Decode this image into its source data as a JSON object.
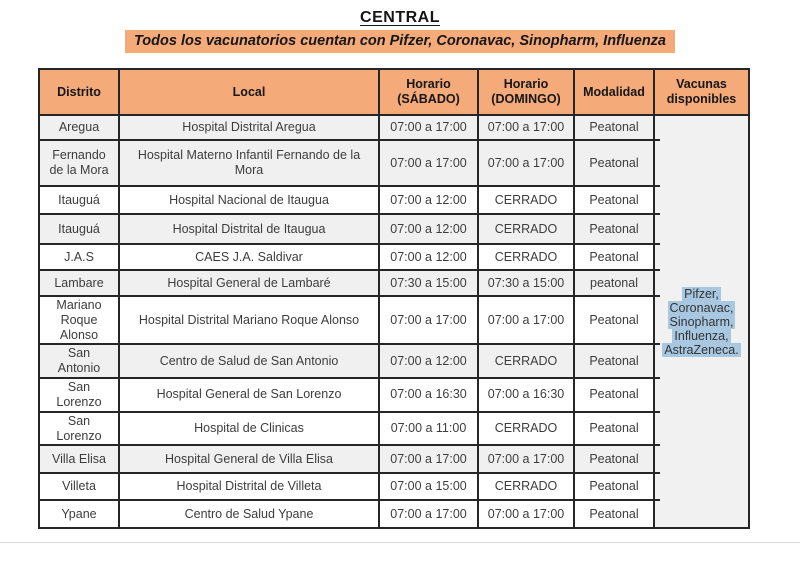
{
  "page": {
    "title": "CENTRAL",
    "subtitle": "Todos los vacunatorios cuentan con Pifzer, Coronavac, Sinopharm, Influenza"
  },
  "colors": {
    "orange_highlight": "#F4AA79",
    "row_shade": "#F0F0F0",
    "vaccines_shade": "#F1F1F1",
    "blue_highlight": "#A8C7E1",
    "border": "#262626",
    "text": "#3D3D3D"
  },
  "table": {
    "headers": {
      "distrito": "Distrito",
      "local": "Local",
      "sabado": "Horario (SÁBADO)",
      "domingo": "Horario (DOMINGO)",
      "modalidad": "Modalidad",
      "vacunas": "Vacunas disponibles"
    },
    "rows": [
      {
        "distrito": "Aregua",
        "local": "Hospital Distrital Aregua",
        "sabado": "07:00 a 17:00",
        "domingo": "07:00 a 17:00",
        "modalidad": "Peatonal",
        "shaded": true
      },
      {
        "distrito": "Fernando de la Mora",
        "local": "Hospital Materno Infantil Fernando de la Mora",
        "sabado": "07:00 a 17:00",
        "domingo": "07:00 a 17:00",
        "modalidad": "Peatonal",
        "shaded": true
      },
      {
        "distrito": "Itauguá",
        "local": "Hospital Nacional de Itaugua",
        "sabado": "07:00 a 12:00",
        "domingo": "CERRADO",
        "modalidad": "Peatonal",
        "shaded": false
      },
      {
        "distrito": "Itauguá",
        "local": "Hospital Distrital de Itaugua",
        "sabado": "07:00 a 12:00",
        "domingo": "CERRADO",
        "modalidad": "Peatonal",
        "shaded": true
      },
      {
        "distrito": "J.A.S",
        "local": "CAES J.A. Saldivar",
        "sabado": "07:00 a 12:00",
        "domingo": "CERRADO",
        "modalidad": "Peatonal",
        "shaded": false
      },
      {
        "distrito": "Lambare",
        "local": "Hospital General de Lambaré",
        "sabado": "07:30 a 15:00",
        "domingo": "07:30 a 15:00",
        "modalidad": "peatonal",
        "shaded": true
      },
      {
        "distrito": "Mariano Roque Alonso",
        "local": "Hospital Distrital Mariano Roque Alonso",
        "sabado": "07:00 a 17:00",
        "domingo": "07:00 a 17:00",
        "modalidad": "Peatonal",
        "shaded": false
      },
      {
        "distrito": "San Antonio",
        "local": "Centro de Salud de San Antonio",
        "sabado": "07:00 a 12:00",
        "domingo": "CERRADO",
        "modalidad": "Peatonal",
        "shaded": true
      },
      {
        "distrito": "San Lorenzo",
        "local": "Hospital General de San Lorenzo",
        "sabado": "07:00 a 16:30",
        "domingo": "07:00 a 16:30",
        "modalidad": "Peatonal",
        "shaded": false
      },
      {
        "distrito": "San Lorenzo",
        "local": "Hospital de Clinicas",
        "sabado": "07:00 a 11:00",
        "domingo": "CERRADO",
        "modalidad": "Peatonal",
        "shaded": false
      },
      {
        "distrito": "Villa Elisa",
        "local": "Hospital General de Villa Elisa",
        "sabado": "07:00 a 17:00",
        "domingo": "07:00 a 17:00",
        "modalidad": "Peatonal",
        "shaded": true
      },
      {
        "distrito": "Villeta",
        "local": "Hospital Distrital de Villeta",
        "sabado": "07:00 a 15:00",
        "domingo": "CERRADO",
        "modalidad": "Peatonal",
        "shaded": false
      },
      {
        "distrito": "Ypane",
        "local": "Centro de Salud Ypane",
        "sabado": "07:00 a 17:00",
        "domingo": "07:00 a 17:00",
        "modalidad": "Peatonal",
        "shaded": false
      }
    ],
    "vacunas_cell": {
      "lines": [
        "Pifzer,",
        "Coronavac,",
        "Sinopharm,",
        "Influenza,",
        "AstraZeneca."
      ]
    }
  }
}
